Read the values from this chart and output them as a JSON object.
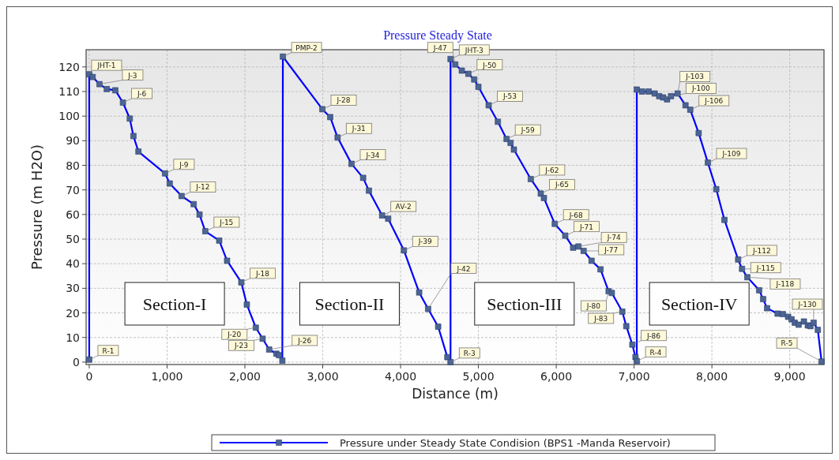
{
  "chart_data": {
    "type": "line",
    "title": "Pressure Steady State",
    "xlabel": "Distance (m)",
    "ylabel": "Pressure (m H2O)",
    "xlim": [
      -40,
      9440
    ],
    "ylim": [
      -1,
      127
    ],
    "xticks": [
      0,
      {
        "value": 1000,
        "label": "1,000"
      },
      {
        "value": 2000,
        "label": "2,000"
      },
      {
        "value": 3000,
        "label": "3,000"
      },
      {
        "value": 4000,
        "label": "4,000"
      },
      {
        "value": 5000,
        "label": "5,000"
      },
      {
        "value": 6000,
        "label": "6,000"
      },
      {
        "value": 7000,
        "label": "7,000"
      },
      {
        "value": 8000,
        "label": "8,000"
      },
      {
        "value": 9000,
        "label": "9,000"
      }
    ],
    "yticks": [
      0,
      10,
      20,
      30,
      40,
      50,
      60,
      70,
      80,
      90,
      100,
      110,
      120
    ],
    "grid": true,
    "legend": "bottom",
    "marker": "square",
    "line_style": "solid",
    "series": [
      {
        "name": "Pressure under Steady State Condision (BPS1 -Manda Reservoir)",
        "color": "#0000ff",
        "x": [
          0,
          0,
          44,
          132,
          226,
          335,
          433,
          521,
          568,
          632,
          974,
          1034,
          1187,
          1342,
          1417,
          1491,
          1670,
          1771,
          1954,
          2025,
          2140,
          2228,
          2312,
          2404,
          2437,
          2481,
          2488,
          2995,
          3096,
          3191,
          3370,
          3519,
          3593,
          3763,
          3841,
          4043,
          4239,
          4354,
          4483,
          4601,
          4642,
          4642,
          4703,
          4787,
          4871,
          4946,
          5000,
          5132,
          5250,
          5362,
          5413,
          5456,
          5673,
          5801,
          5842,
          5981,
          6116,
          6217,
          6285,
          6352,
          6454,
          6569,
          6673,
          6714,
          6849,
          6900,
          6978,
          7018,
          7035,
          7035,
          7103,
          7187,
          7265,
          7323,
          7373,
          7424,
          7475,
          7559,
          7661,
          7722,
          7830,
          7948,
          8056,
          8161,
          8337,
          8387,
          8455,
          8607,
          8658,
          8709,
          8844,
          8911,
          8979,
          9023,
          9064,
          9114,
          9182,
          9232,
          9266,
          9307,
          9361,
          9409
        ],
        "values": [
          1,
          117,
          115.9,
          113,
          111,
          110.5,
          105.5,
          99,
          91.9,
          85.6,
          76.7,
          72.6,
          67.5,
          64.2,
          60,
          53.2,
          49.4,
          41.2,
          32.4,
          23.4,
          14,
          9.5,
          5.1,
          3.4,
          2.8,
          0.6,
          124.2,
          102.8,
          99.6,
          91.3,
          80.6,
          74.9,
          69.7,
          59.6,
          58.3,
          45.4,
          28.3,
          21.6,
          14.4,
          2,
          0,
          123.2,
          121,
          118.5,
          117.2,
          114.9,
          111.9,
          104.4,
          97.7,
          90.7,
          89.1,
          86.4,
          74.4,
          68.5,
          66.7,
          56.2,
          51.4,
          46.5,
          47,
          45.2,
          41.2,
          37.7,
          28.8,
          28.1,
          20.5,
          14.6,
          7.1,
          2,
          0.4,
          110.8,
          110,
          110,
          109.2,
          108.1,
          107.6,
          106.8,
          108.1,
          109.2,
          104.4,
          102.6,
          93.1,
          81.1,
          70.3,
          57.8,
          41.7,
          37.9,
          34.5,
          29.2,
          25.6,
          21.9,
          19.7,
          19.5,
          18.4,
          17.4,
          16,
          15.2,
          16.5,
          14.9,
          14.6,
          16,
          13.1,
          0.2
        ]
      }
    ],
    "annotations": [
      "Section-I",
      "Section-II",
      "Section-III",
      "Section-IV",
      {
        "text": "R-1",
        "x": 0,
        "y": 1
      },
      {
        "text": "JHT-1",
        "x": 0,
        "y": 117
      },
      {
        "text": "J-3",
        "x": 132,
        "y": 113
      },
      {
        "text": "J-6",
        "x": 433,
        "y": 105.5
      },
      {
        "text": "J-9",
        "x": 974,
        "y": 76.7
      },
      {
        "text": "J-12",
        "x": 1187,
        "y": 67.5
      },
      {
        "text": "J-15",
        "x": 1491,
        "y": 53.2
      },
      {
        "text": "J-18",
        "x": 1954,
        "y": 32.4
      },
      {
        "text": "J-20",
        "x": 2140,
        "y": 14
      },
      {
        "text": "J-23",
        "x": 2228,
        "y": 9.5
      },
      {
        "text": "J-26",
        "x": 2312,
        "y": 5.1
      },
      {
        "text": "PMP-2",
        "x": 2488,
        "y": 124.2
      },
      {
        "text": "J-28",
        "x": 2995,
        "y": 102.8
      },
      {
        "text": "J-31",
        "x": 3191,
        "y": 91.3
      },
      {
        "text": "J-34",
        "x": 3370,
        "y": 80.6
      },
      {
        "text": "AV-2",
        "x": 3763,
        "y": 59.6
      },
      {
        "text": "J-39",
        "x": 4043,
        "y": 45.4
      },
      {
        "text": "J-42",
        "x": 4354,
        "y": 21.6
      },
      {
        "text": "R-3",
        "x": 4642,
        "y": 0
      },
      {
        "text": "JHT-3",
        "x": 4642,
        "y": 123.2
      },
      {
        "text": "J-47",
        "x": 4703,
        "y": 121
      },
      {
        "text": "J-50",
        "x": 4871,
        "y": 117.2
      },
      {
        "text": "J-53",
        "x": 5132,
        "y": 104.4
      },
      {
        "text": "J-59",
        "x": 5362,
        "y": 90.7
      },
      {
        "text": "J-62",
        "x": 5673,
        "y": 74.4
      },
      {
        "text": "J-65",
        "x": 5801,
        "y": 68.5
      },
      {
        "text": "J-68",
        "x": 5981,
        "y": 56.2
      },
      {
        "text": "J-71",
        "x": 6116,
        "y": 51.4
      },
      {
        "text": "J-74",
        "x": 6285,
        "y": 47
      },
      {
        "text": "J-77",
        "x": 6352,
        "y": 45.2
      },
      {
        "text": "J-80",
        "x": 6673,
        "y": 28.8
      },
      {
        "text": "J-83",
        "x": 6849,
        "y": 20.5
      },
      {
        "text": "J-86",
        "x": 6978,
        "y": 7.1
      },
      {
        "text": "R-4",
        "x": 7035,
        "y": 0.4
      },
      {
        "text": "J-100",
        "x": 7373,
        "y": 107.6
      },
      {
        "text": "J-103",
        "x": 7559,
        "y": 109.2
      },
      {
        "text": "J-106",
        "x": 7722,
        "y": 102.6
      },
      {
        "text": "J-109",
        "x": 7948,
        "y": 81.1
      },
      {
        "text": "J-112",
        "x": 8337,
        "y": 41.7
      },
      {
        "text": "J-115",
        "x": 8387,
        "y": 37.9
      },
      {
        "text": "J-118",
        "x": 8455,
        "y": 34.5
      },
      {
        "text": "J-130",
        "x": 9307,
        "y": 16
      },
      {
        "text": "R-5",
        "x": 9409,
        "y": 0.2
      }
    ]
  }
}
